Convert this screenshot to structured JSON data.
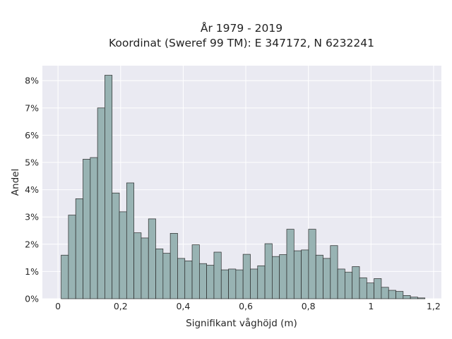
{
  "chart_data": {
    "type": "bar",
    "title_line1": "År 1979 - 2019",
    "title_line2": "Koordinat (Sweref 99 TM): E 347172, N 6232241",
    "xlabel": "Signifikant våghöjd (m)",
    "ylabel": "Andel",
    "xlim": [
      -0.05,
      1.225
    ],
    "ylim": [
      0,
      8.55
    ],
    "x_ticks": [
      0,
      0.2,
      0.4,
      0.6,
      0.8,
      1,
      1.2
    ],
    "x_tick_labels": [
      "0",
      "0,2",
      "0,4",
      "0,6",
      "0,8",
      "1",
      "1,2"
    ],
    "y_ticks": [
      0,
      1,
      2,
      3,
      4,
      5,
      6,
      7,
      8
    ],
    "y_tick_labels": [
      "0%",
      "1%",
      "2%",
      "3%",
      "4%",
      "5%",
      "6%",
      "7%",
      "8%"
    ],
    "bin_start": 0.01,
    "bin_width": 0.02325,
    "values": [
      1.6,
      3.07,
      3.67,
      5.12,
      5.18,
      7.0,
      8.2,
      3.88,
      3.19,
      4.25,
      2.42,
      2.23,
      2.93,
      1.83,
      1.67,
      2.4,
      1.48,
      1.39,
      1.98,
      1.29,
      1.23,
      1.71,
      1.06,
      1.09,
      1.06,
      1.63,
      1.09,
      1.21,
      2.02,
      1.55,
      1.62,
      2.55,
      1.76,
      1.79,
      2.55,
      1.6,
      1.48,
      1.95,
      1.09,
      0.98,
      1.18,
      0.77,
      0.58,
      0.74,
      0.42,
      0.31,
      0.27,
      0.12,
      0.06,
      0.03
    ],
    "grid": true,
    "colors": {
      "bar": "#98b3b3",
      "bar_edge": "#2b2b2b",
      "plot_background": "#eaeaf2",
      "grid": "#ffffff"
    }
  }
}
